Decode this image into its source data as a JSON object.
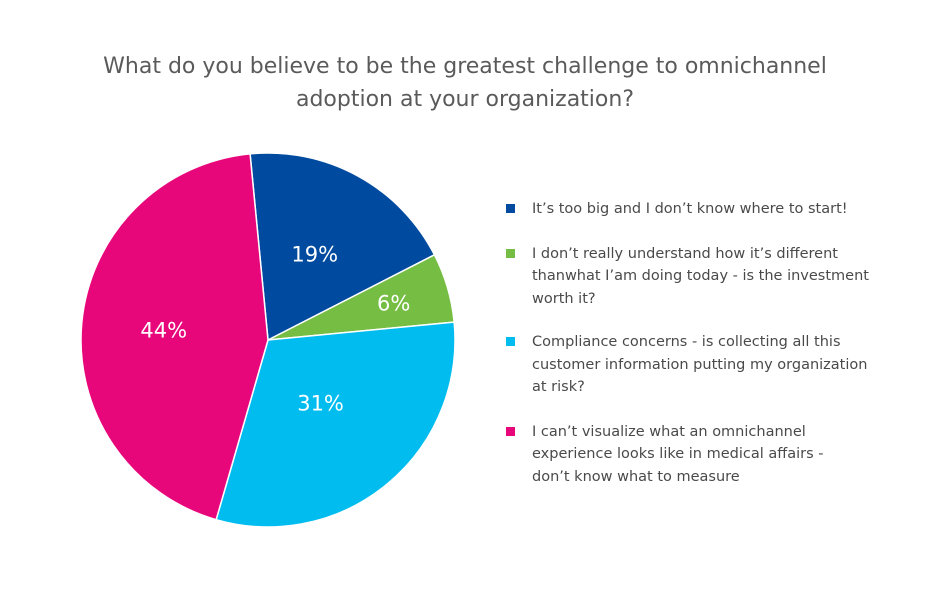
{
  "title_lines": [
    "What do you believe to be the greatest challenge to omnichannel",
    "adoption at your organization?"
  ],
  "chart_data": {
    "type": "pie",
    "title": "What do you believe to be the greatest challenge to omnichannel adoption at your organization?",
    "legend_position": "right",
    "slices": [
      {
        "label": "It’s too big and I don’t know where to start!",
        "legend_text": "It’s too big and I don’t know where to start!",
        "value": 19,
        "display": "19%",
        "color": "#004b9f"
      },
      {
        "label": "I don’t really understand how it’s different thanwhat I’am doing today - is the investment worth it?",
        "legend_text": "I don’t really understand how it’s different\nthanwhat I’am doing today - is the investment\nworth it?",
        "value": 6,
        "display": "6%",
        "color": "#76bd43"
      },
      {
        "label": "Compliance concerns - is collecting all this customer information putting my organization at risk?",
        "legend_text": "Compliance concerns - is collecting all this\ncustomer information putting my organization\nat risk?",
        "value": 31,
        "display": "31%",
        "color": "#00bcef"
      },
      {
        "label": "I can’t visualize what an omnichannel experience looks like in medical affairs - don’t know what to measure",
        "legend_text": "I can’t visualize what an omnichannel\nexperience looks like in medical affairs -\ndon’t know what to measure",
        "value": 44,
        "display": "44%",
        "color": "#e8077b"
      }
    ]
  }
}
